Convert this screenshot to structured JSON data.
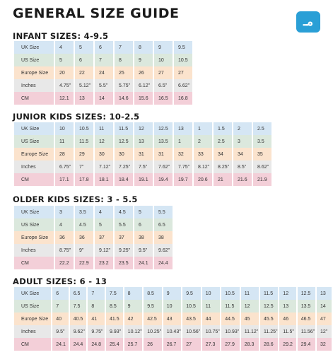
{
  "title": "GENERAL SIZE GUIDE",
  "logo": {
    "text": "مـ",
    "icon": "brand-logo-icon",
    "color": "#2a9fd6"
  },
  "sections": [
    {
      "id": "infant",
      "title": "INFANT SIZES: 4-9.5",
      "rows": [
        {
          "label": "UK Size",
          "values": [
            "4",
            "5",
            "6",
            "7",
            "8",
            "9",
            "9.5"
          ]
        },
        {
          "label": "US Size",
          "values": [
            "5",
            "6",
            "7",
            "8",
            "9",
            "10",
            "10.5"
          ]
        },
        {
          "label": "Europe Size",
          "values": [
            "20",
            "22",
            "24",
            "25",
            "26",
            "27",
            "27"
          ]
        },
        {
          "label": "Inches",
          "values": [
            "4.75\"",
            "5.12\"",
            "5.5\"",
            "5.75\"",
            "6.12\"",
            "6.5\"",
            "6.62\""
          ]
        },
        {
          "label": "CM",
          "values": [
            "12.1",
            "13",
            "14",
            "14.6",
            "15.6",
            "16.5",
            "16.8"
          ]
        }
      ]
    },
    {
      "id": "junior",
      "title": "JUNIOR KIDS SIZES: 10-2.5",
      "rows": [
        {
          "label": "UK Size",
          "values": [
            "10",
            "10.5",
            "11",
            "11.5",
            "12",
            "12.5",
            "13",
            "1",
            "1.5",
            "2",
            "2.5"
          ]
        },
        {
          "label": "US Size",
          "values": [
            "11",
            "11.5",
            "12",
            "12.5",
            "13",
            "13.5",
            "1",
            "2",
            "2.5",
            "3",
            "3.5"
          ]
        },
        {
          "label": "Europe Size",
          "values": [
            "28",
            "29",
            "30",
            "30",
            "31",
            "31",
            "32",
            "33",
            "34",
            "34",
            "35"
          ]
        },
        {
          "label": "Inches",
          "values": [
            "6.75\"",
            "7\"",
            "7.12\"",
            "7.25\"",
            "7.5\"",
            "7.62\"",
            "7.75\"",
            "8.12\"",
            "8.25\"",
            "8.5\"",
            "8.62\""
          ]
        },
        {
          "label": "CM",
          "values": [
            "17.1",
            "17.8",
            "18.1",
            "18.4",
            "19.1",
            "19.4",
            "19.7",
            "20.6",
            "21",
            "21.6",
            "21.9"
          ]
        }
      ]
    },
    {
      "id": "older",
      "title": "OLDER KIDS SIZES: 3 - 5.5",
      "rows": [
        {
          "label": "UK Size",
          "values": [
            "3",
            "3.5",
            "4",
            "4.5",
            "5",
            "5.5"
          ]
        },
        {
          "label": "US Size",
          "values": [
            "4",
            "4.5",
            "5",
            "5.5",
            "6",
            "6.5"
          ]
        },
        {
          "label": "Europe Size",
          "values": [
            "36",
            "36",
            "37",
            "37",
            "38",
            "38"
          ]
        },
        {
          "label": "Inches",
          "values": [
            "8.75\"",
            "9\"",
            "9.12\"",
            "9.25\"",
            "9.5\"",
            "9.62\""
          ]
        },
        {
          "label": "CM",
          "values": [
            "22.2",
            "22.9",
            "23.2",
            "23.5",
            "24.1",
            "24.4"
          ]
        }
      ]
    },
    {
      "id": "adult",
      "title": "ADULT SIZES: 6 - 13",
      "rows": [
        {
          "label": "UK Size",
          "values": [
            "6",
            "6.5",
            "7",
            "7.5",
            "8",
            "8.5",
            "9",
            "9.5",
            "10",
            "10.5",
            "11",
            "11.5",
            "12",
            "12.5",
            "13"
          ]
        },
        {
          "label": "US Size",
          "values": [
            "7",
            "7.5",
            "8",
            "8.5",
            "9",
            "9.5",
            "10",
            "10.5",
            "11",
            "11.5",
            "12",
            "12.5",
            "13",
            "13.5",
            "14"
          ]
        },
        {
          "label": "Europe Size",
          "values": [
            "40",
            "40.5",
            "41",
            "41.5",
            "42",
            "42.5",
            "43",
            "43.5",
            "44",
            "44.5",
            "45",
            "45.5",
            "46",
            "46.5",
            "47"
          ]
        },
        {
          "label": "Inches",
          "values": [
            "9.5\"",
            "9.62\"",
            "9.75\"",
            "9.93\"",
            "10.12\"",
            "10.25\"",
            "10.43\"",
            "10.56\"",
            "10.75\"",
            "10.93\"",
            "11.12\"",
            "11.25\"",
            "11.5\"",
            "11.56\"",
            "12\""
          ]
        },
        {
          "label": "CM",
          "values": [
            "24.1",
            "24.4",
            "24.8",
            "25.4",
            "25.7",
            "26",
            "26.7",
            "27",
            "27.3",
            "27.9",
            "28.3",
            "28.6",
            "29.2",
            "29.4",
            "32"
          ]
        }
      ]
    }
  ],
  "row_colors": [
    "#d5e6f4",
    "#dbe8dd",
    "#fbe3cd",
    "#e8e8e8",
    "#f3cfd8"
  ]
}
